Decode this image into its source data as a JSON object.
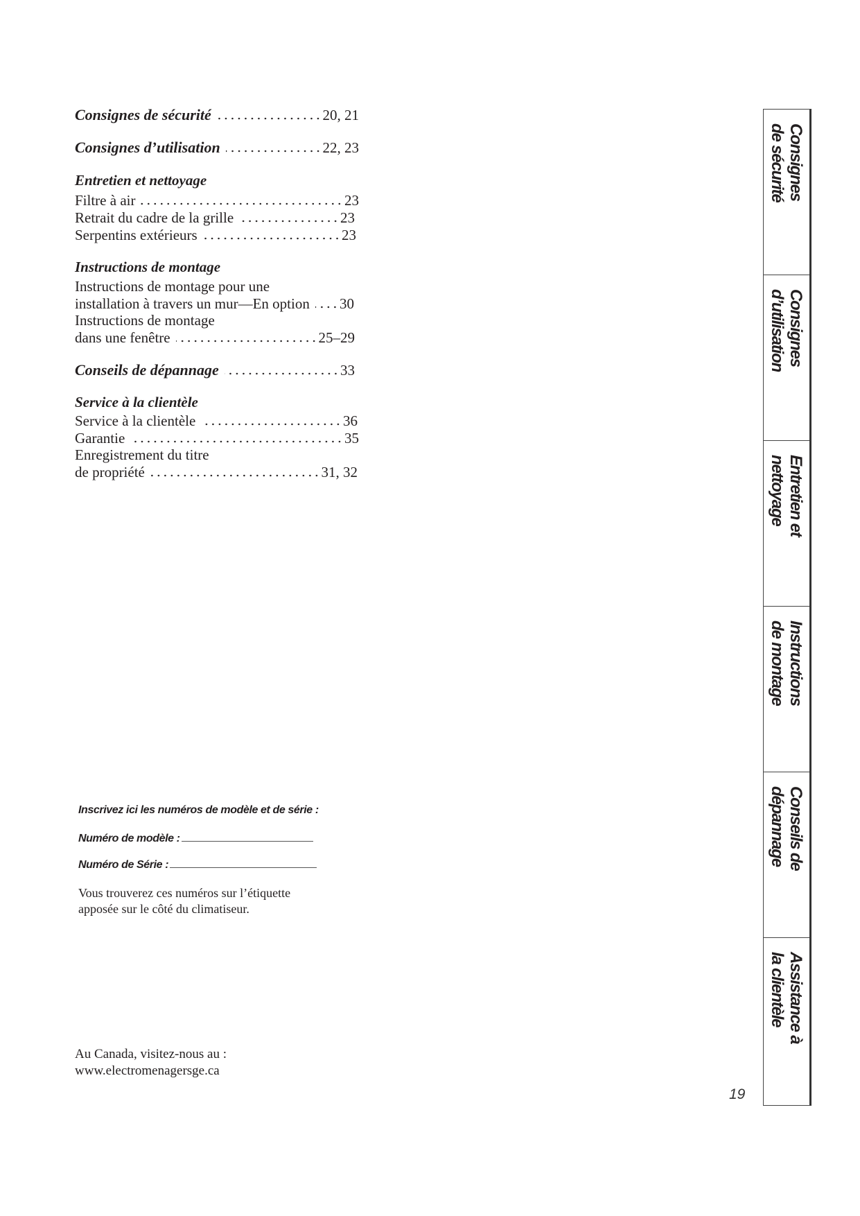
{
  "toc": {
    "securite": {
      "title": "Consignes de sécurité",
      "pages": "20, 21"
    },
    "utilisation": {
      "title": "Consignes d’utilisation",
      "pages": "22, 23"
    },
    "entretien": {
      "title": "Entretien et nettoyage",
      "items": [
        {
          "label": "Filtre à air",
          "pages": "23"
        },
        {
          "label": "Retrait du cadre de la grille",
          "pages": "23"
        },
        {
          "label": "Serpentins extérieurs",
          "pages": "23"
        }
      ]
    },
    "montage": {
      "title": "Instructions de montage",
      "wall_line1": "Instructions de montage pour une",
      "wall_line2": "installation à travers un mur—En option",
      "wall_pages": "30",
      "window_line1": "Instructions de montage",
      "window_line2": "dans une fenêtre",
      "window_pages": "25–29"
    },
    "depannage": {
      "title": "Conseils de dépannage",
      "pages": "33"
    },
    "service": {
      "title": "Service à la clientèle",
      "service_label": "Service à la clientèle",
      "service_pages": "36",
      "garantie_label": "Garantie",
      "garantie_pages": "35",
      "enreg_line1": "Enregistrement du titre",
      "enreg_line2": "de propriété",
      "enreg_pages": "31, 32"
    }
  },
  "form": {
    "heading": "Inscrivez ici les numéros de modèle et de série :",
    "model_label": "Numéro de modèle :",
    "serial_label": "Numéro de Série :",
    "note_line1": "Vous trouverez ces numéros sur l’étiquette",
    "note_line2": "apposée sur le côté du climatiseur."
  },
  "canada": {
    "line1": "Au Canada, visitez-nous au :",
    "url": "www.electromenagersge.ca"
  },
  "tabs": [
    "Consignes\nde sécurité",
    "Consignes\nd’utilisation",
    "Entretien et\nnettoyage",
    "Instructions\nde montage",
    "Conseils de\ndépannage",
    "Assistance à\nla clientèle"
  ],
  "page_number": "19"
}
